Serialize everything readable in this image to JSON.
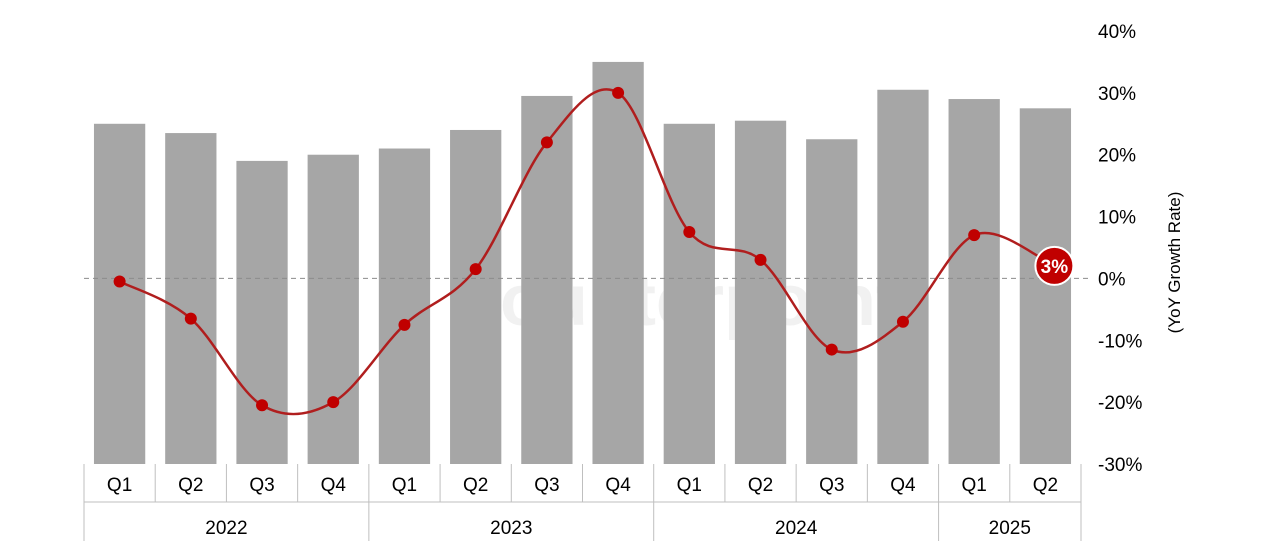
{
  "watermark": "Counterpoint",
  "colors": {
    "bar": "#a6a6a6",
    "line": "#b01e1e",
    "marker": "#c00000",
    "zero_line": "#8c8c8c",
    "table_border": "#bfbfbf"
  },
  "chart_data": {
    "type": "bar",
    "categories": [
      "Q1",
      "Q2",
      "Q3",
      "Q4",
      "Q1",
      "Q2",
      "Q3",
      "Q4",
      "Q1",
      "Q2",
      "Q3",
      "Q4",
      "Q1",
      "Q2"
    ],
    "groups": [
      {
        "label": "2022",
        "span": 4
      },
      {
        "label": "2023",
        "span": 4
      },
      {
        "label": "2024",
        "span": 4
      },
      {
        "label": "2025",
        "span": 2
      }
    ],
    "series": [
      {
        "type": "bar",
        "values": [
          25,
          23.5,
          19,
          20,
          21,
          24,
          29.5,
          35,
          25,
          25.5,
          22.5,
          30.5,
          29,
          27.5
        ]
      },
      {
        "type": "line",
        "axis": "right",
        "values": [
          -0.5,
          -6.5,
          -20.5,
          -20,
          -7.5,
          1.5,
          22,
          30,
          7.5,
          3,
          -11.5,
          -7,
          7,
          3
        ]
      }
    ],
    "y2": {
      "label": "(YoY Growth Rate)",
      "ylim": [
        -30,
        40
      ],
      "ticks": [
        "40%",
        "30%",
        "20%",
        "10%",
        "0%",
        "-10%",
        "-20%",
        "-30%"
      ]
    },
    "annotation": {
      "text": "3%",
      "index": 13
    }
  }
}
